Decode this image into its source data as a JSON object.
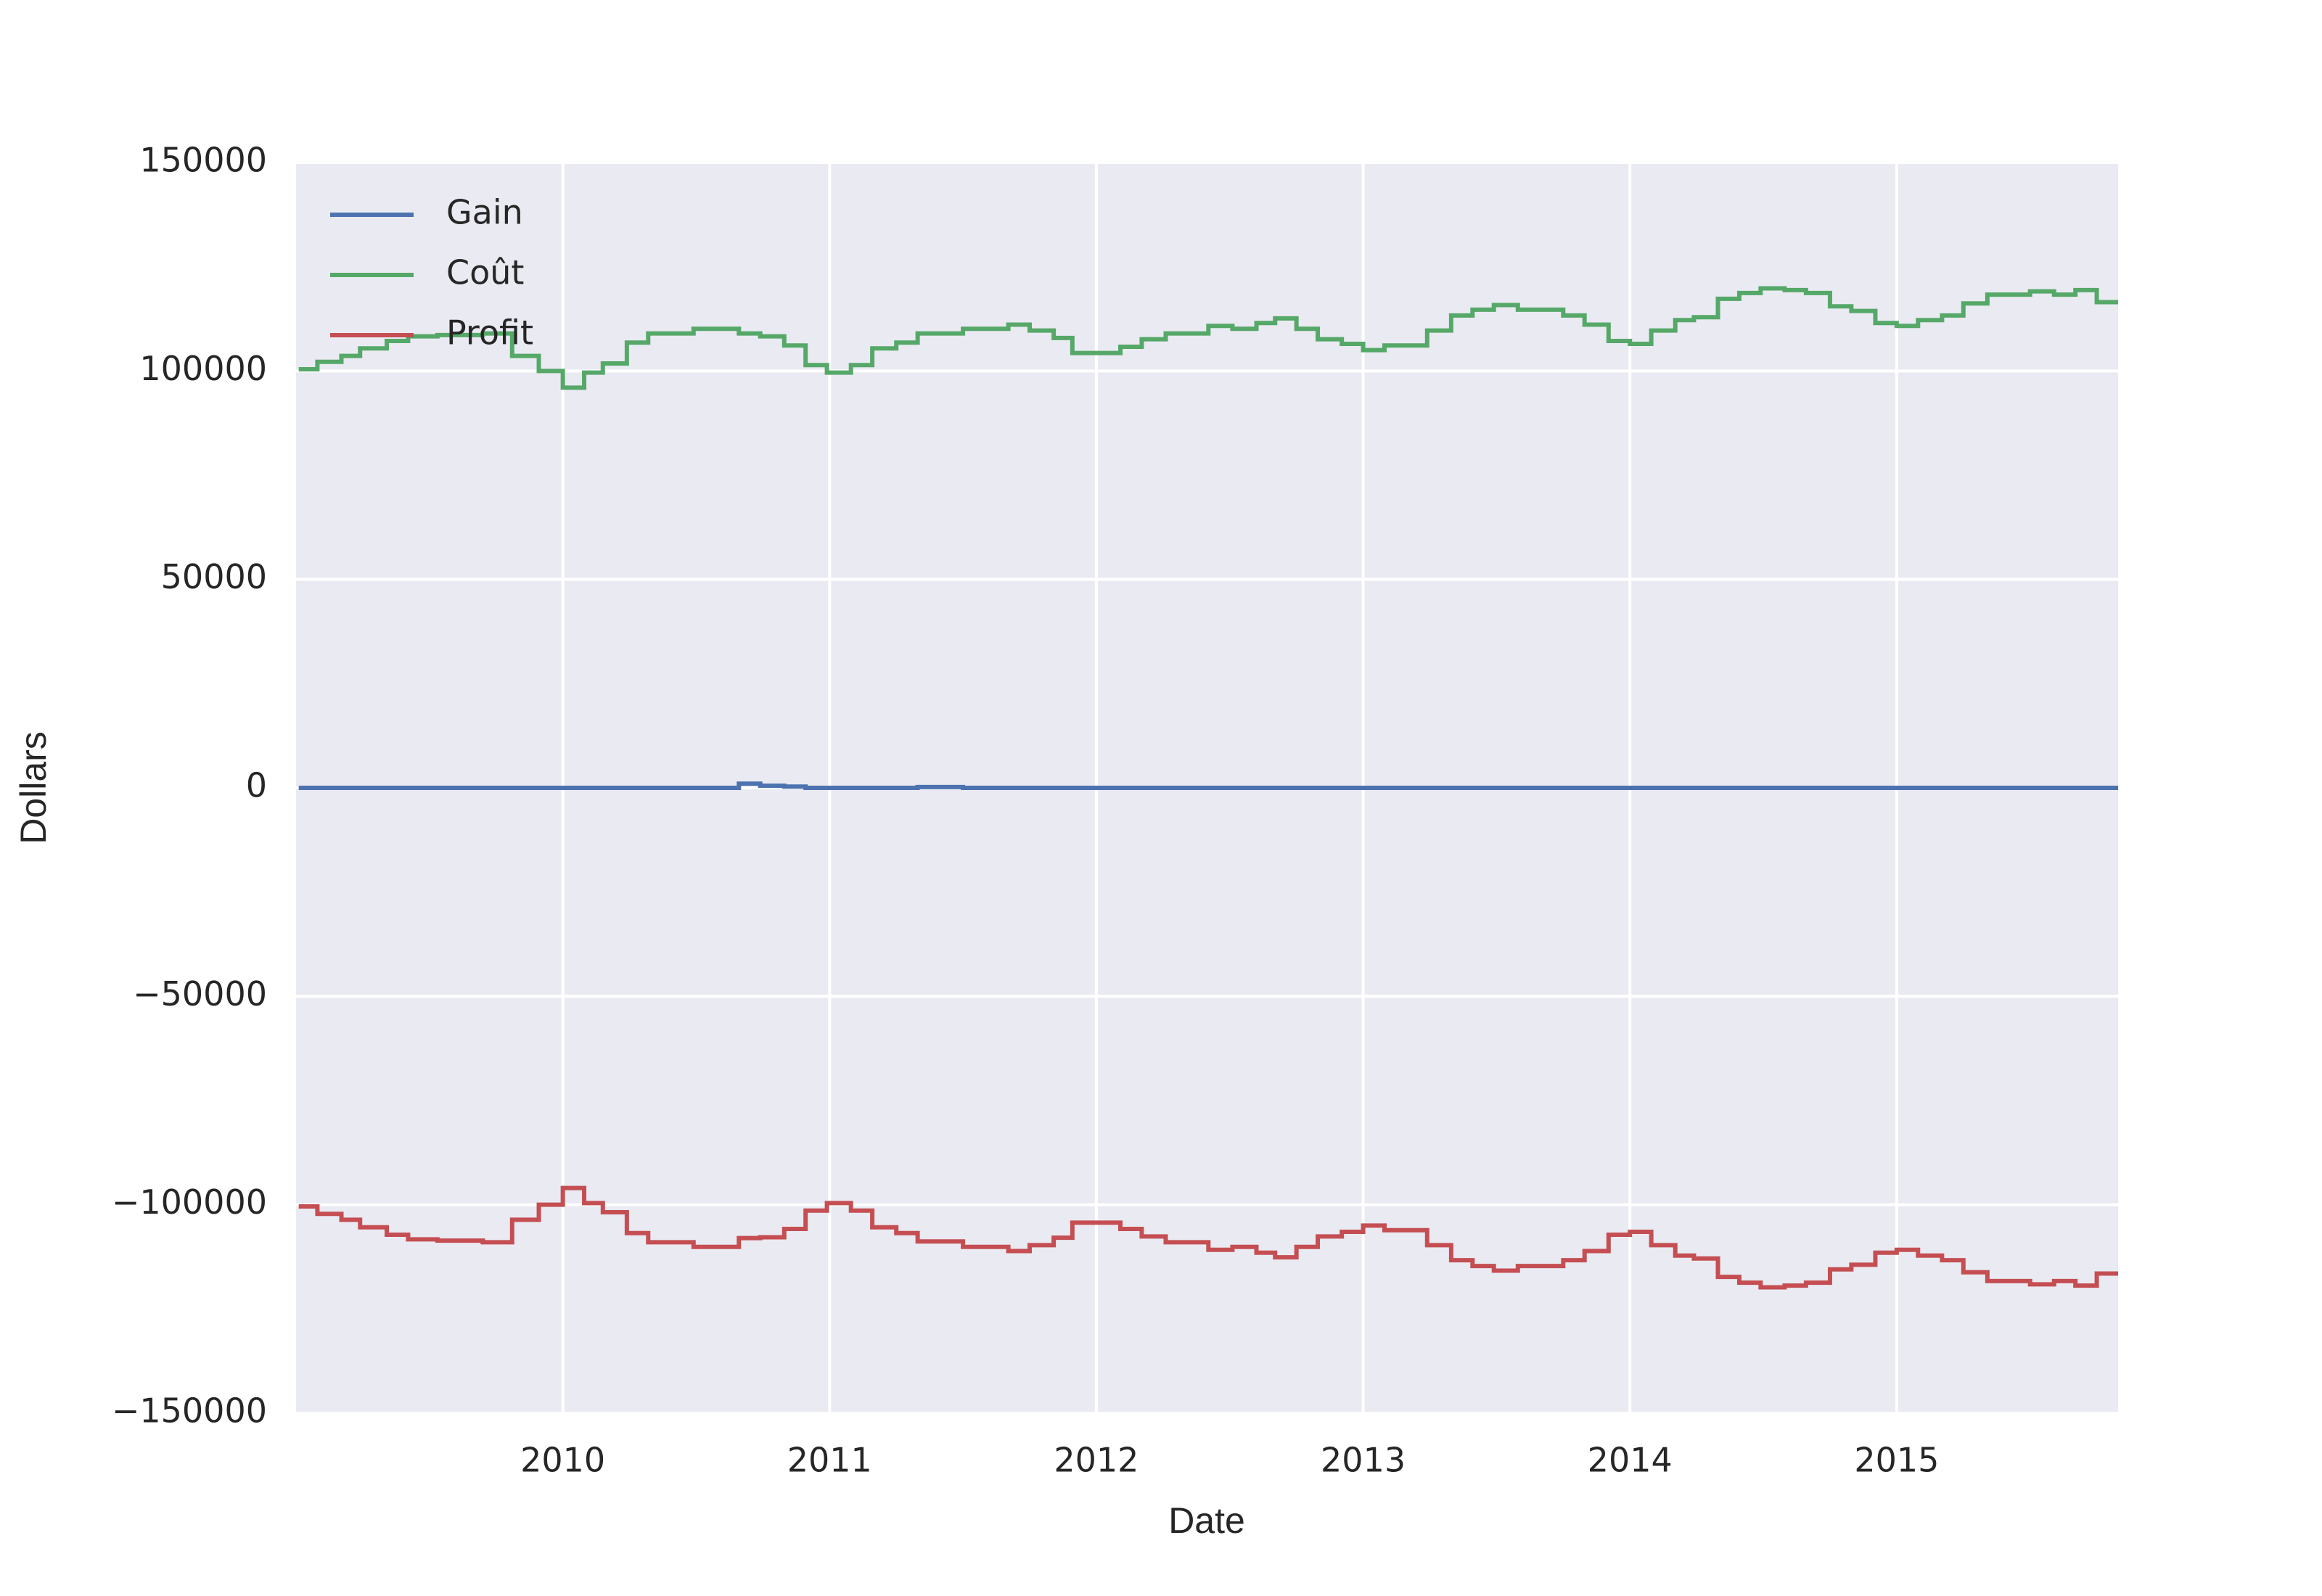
{
  "chart_data": {
    "type": "line",
    "drawstyle": "steps-post",
    "x_label": "Date",
    "y_label": "Dollars",
    "x": [
      2009.01,
      2009.08,
      2009.17,
      2009.24,
      2009.34,
      2009.42,
      2009.53,
      2009.7,
      2009.81,
      2009.91,
      2010.0,
      2010.08,
      2010.15,
      2010.24,
      2010.32,
      2010.49,
      2010.66,
      2010.74,
      2010.83,
      2010.91,
      2010.99,
      2011.08,
      2011.16,
      2011.25,
      2011.33,
      2011.5,
      2011.67,
      2011.75,
      2011.84,
      2011.91,
      2012.09,
      2012.17,
      2012.26,
      2012.42,
      2012.51,
      2012.6,
      2012.67,
      2012.75,
      2012.83,
      2012.92,
      2013.0,
      2013.08,
      2013.24,
      2013.33,
      2013.41,
      2013.49,
      2013.58,
      2013.75,
      2013.83,
      2013.92,
      2014.0,
      2014.08,
      2014.17,
      2014.24,
      2014.33,
      2014.41,
      2014.49,
      2014.58,
      2014.66,
      2014.75,
      2014.83,
      2014.92,
      2015.0,
      2015.08,
      2015.17,
      2015.25,
      2015.34,
      2015.5,
      2015.59,
      2015.67,
      2015.75,
      2015.83
    ],
    "series": [
      {
        "name": "Gain",
        "color": "#4c72b0",
        "values": [
          0,
          0,
          0,
          0,
          0,
          0,
          0,
          0,
          0,
          0,
          0,
          0,
          0,
          0,
          0,
          0,
          1000,
          500,
          300,
          0,
          0,
          0,
          0,
          0,
          200,
          0,
          0,
          0,
          0,
          0,
          0,
          0,
          0,
          0,
          0,
          0,
          0,
          0,
          0,
          0,
          0,
          0,
          0,
          0,
          0,
          0,
          0,
          0,
          0,
          0,
          0,
          0,
          0,
          0,
          0,
          0,
          0,
          0,
          0,
          0,
          0,
          0,
          0,
          0,
          0,
          0,
          0,
          0,
          0,
          0,
          0,
          0
        ]
      },
      {
        "name": "Coût",
        "color": "#55a868",
        "values": [
          100400,
          102200,
          103600,
          105400,
          107200,
          108300,
          108600,
          109000,
          103600,
          100000,
          96000,
          99600,
          101800,
          106800,
          109000,
          110100,
          109000,
          108300,
          106100,
          101400,
          99600,
          101400,
          105400,
          106800,
          109000,
          110100,
          111100,
          109700,
          107900,
          104300,
          105800,
          107600,
          109000,
          110800,
          110100,
          111500,
          112600,
          110100,
          107600,
          106500,
          105000,
          106100,
          109700,
          113300,
          114700,
          115800,
          114700,
          113300,
          111100,
          107200,
          106500,
          109700,
          112200,
          112900,
          117300,
          118700,
          119800,
          119400,
          118700,
          115500,
          114400,
          111500,
          110800,
          112200,
          113300,
          116200,
          118300,
          119100,
          118300,
          119400,
          116500,
          116500
        ]
      },
      {
        "name": "Profit",
        "color": "#c44e52",
        "values": [
          -100400,
          -102200,
          -103600,
          -105400,
          -107200,
          -108300,
          -108600,
          -109000,
          -103600,
          -100000,
          -96000,
          -99600,
          -101800,
          -106800,
          -109000,
          -110100,
          -108000,
          -107800,
          -105800,
          -101400,
          -99600,
          -101400,
          -105400,
          -106800,
          -108800,
          -110100,
          -111100,
          -109700,
          -107900,
          -104300,
          -105800,
          -107600,
          -109000,
          -110800,
          -110100,
          -111500,
          -112600,
          -110100,
          -107600,
          -106500,
          -105000,
          -106100,
          -109700,
          -113300,
          -114700,
          -115800,
          -114700,
          -113300,
          -111100,
          -107200,
          -106500,
          -109700,
          -112200,
          -112900,
          -117300,
          -118700,
          -119800,
          -119400,
          -118700,
          -115500,
          -114400,
          -111500,
          -110800,
          -112200,
          -113300,
          -116200,
          -118300,
          -119100,
          -118300,
          -119400,
          -116500,
          -116500
        ]
      }
    ],
    "xlim": [
      2009.0,
      2015.83
    ],
    "xticks": [
      2010,
      2011,
      2012,
      2013,
      2014,
      2015
    ],
    "ylim": [
      -150000,
      150000
    ],
    "yticks": [
      {
        "value": -150000,
        "label": "−150000"
      },
      {
        "value": -100000,
        "label": "−100000"
      },
      {
        "value": -50000,
        "label": "−50000"
      },
      0,
      50000,
      100000,
      150000
    ],
    "grid": true,
    "legend": "upper-left"
  }
}
